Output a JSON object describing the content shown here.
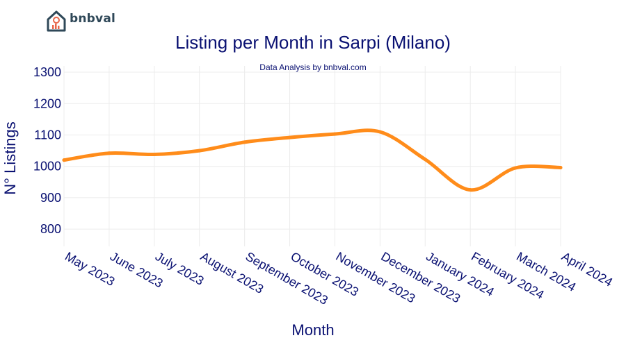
{
  "brand": {
    "name": "bnbval"
  },
  "chart_data": {
    "type": "line",
    "title": "Listing per Month in Sarpi (Milano)",
    "subtitle": "Data Analysis by bnbval.com",
    "xlabel": "Month",
    "ylabel": "N° Listings",
    "categories": [
      "May 2023",
      "June 2023",
      "July 2023",
      "August 2023",
      "September 2023",
      "October 2023",
      "November 2023",
      "December 2023",
      "January 2024",
      "February 2024",
      "March 2024",
      "April 2024"
    ],
    "series": [
      {
        "values": [
          1020,
          1042,
          1038,
          1050,
          1077,
          1092,
          1103,
          1110,
          1022,
          925,
          995,
          996
        ]
      }
    ],
    "yticks": [
      800,
      900,
      1000,
      1100,
      1200,
      1300
    ],
    "ylim": [
      745,
      1320
    ],
    "grid": true,
    "line_color": "#ff8c1a"
  }
}
